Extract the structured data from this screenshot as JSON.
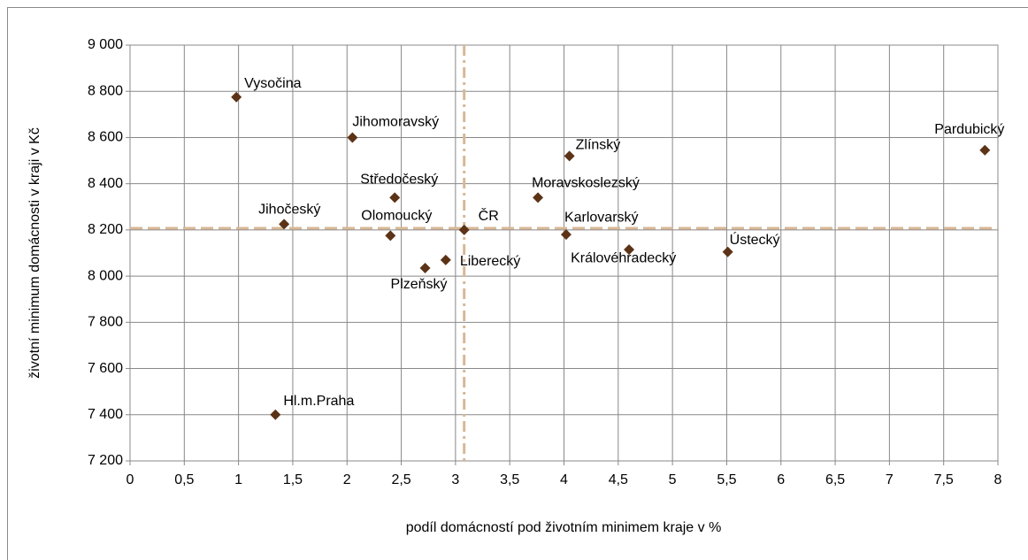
{
  "chart_data": {
    "type": "scatter",
    "x_label": "podíl domácností pod životním minimem kraje v %",
    "y_label": "životní minimum domácnosti v kraji v Kč",
    "labels": [
      "Vysočina",
      "Jihomoravský",
      "Zlínský",
      "Pardubický",
      "Středočeský",
      "Moravskoslezský",
      "Jihočeský",
      "ČR",
      "Olomoucký",
      "Karlovarský",
      "Královéhradecký",
      "Ústecký",
      "Liberecký",
      "Plzeňský",
      "Hl.m.Praha"
    ],
    "x": [
      0.98,
      2.05,
      4.05,
      7.88,
      2.44,
      3.76,
      1.42,
      3.08,
      2.4,
      4.02,
      4.6,
      5.51,
      2.91,
      2.72,
      1.34
    ],
    "values": [
      8775,
      8600,
      8520,
      8545,
      8340,
      8340,
      8225,
      8200,
      8175,
      8180,
      8115,
      8105,
      8070,
      8035,
      7400
    ],
    "color": "#5c3317",
    "reference_lines": {
      "x": 3.08,
      "y": 8207,
      "color": "#d8b896"
    },
    "xlim": [
      0,
      8
    ],
    "xticks": [
      0,
      {
        "value": 0.5,
        "label": "0,5"
      },
      1,
      {
        "value": 1.5,
        "label": "1,5"
      },
      2,
      {
        "value": 2.5,
        "label": "2,5"
      },
      3,
      {
        "value": 3.5,
        "label": "3,5"
      },
      4,
      {
        "value": 4.5,
        "label": "4,5"
      },
      5,
      {
        "value": 5.5,
        "label": "5,5"
      },
      6,
      {
        "value": 6.5,
        "label": "6,5"
      },
      7,
      {
        "value": 7.5,
        "label": "7,5"
      },
      8
    ],
    "ylim": [
      7200,
      9000
    ],
    "yticks": [
      {
        "value": 7200,
        "label": "7 200"
      },
      {
        "value": 7400,
        "label": "7 400"
      },
      {
        "value": 7600,
        "label": "7 600"
      },
      {
        "value": 7800,
        "label": "7 800"
      },
      {
        "value": 8000,
        "label": "8 000"
      },
      {
        "value": 8200,
        "label": "8 200"
      },
      {
        "value": 8400,
        "label": "8 400"
      },
      {
        "value": 8600,
        "label": "8 600"
      },
      {
        "value": 8800,
        "label": "8 800"
      },
      {
        "value": 9000,
        "label": "9 000"
      }
    ],
    "grid": true
  }
}
